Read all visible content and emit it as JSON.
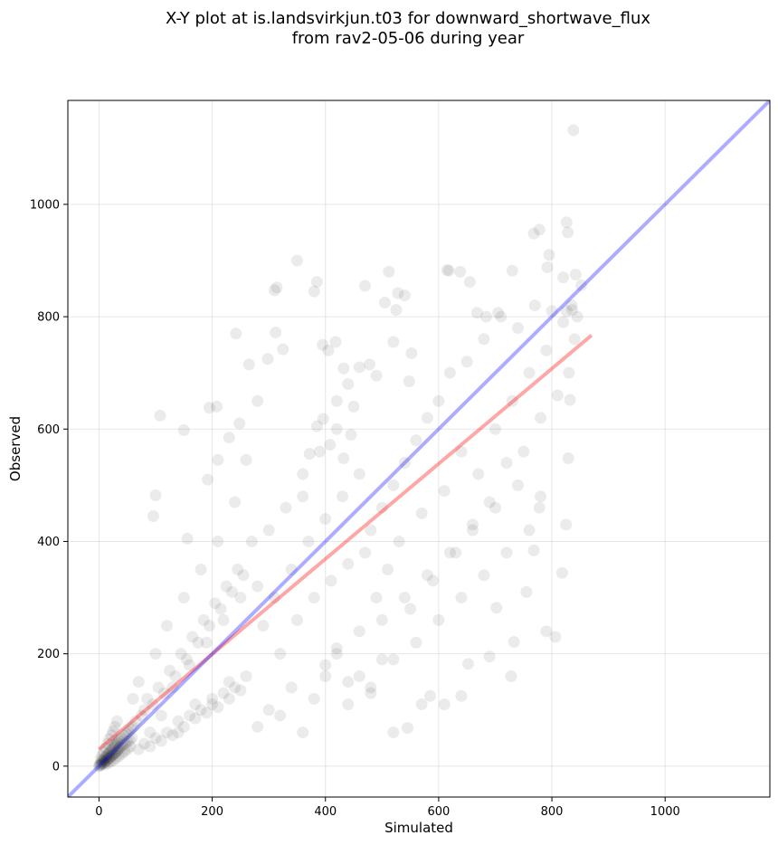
{
  "figure": {
    "title_line1": "X-Y plot at is.landsvirkjun.t03 for downward_shortwave_flux",
    "title_line2": "from rav2-05-06 during year"
  },
  "chart_data": {
    "type": "scatter",
    "xlabel": "Simulated",
    "ylabel": "Observed",
    "xlim": [
      -55,
      1185
    ],
    "ylim": [
      -55,
      1185
    ],
    "xticks": [
      0,
      200,
      400,
      600,
      800,
      1000
    ],
    "yticks": [
      0,
      200,
      400,
      600,
      800,
      1000
    ],
    "grid": true,
    "point_color": "#000000",
    "point_alpha": 0.08,
    "identity_line": {
      "color": "#0000ff",
      "alpha": 0.32,
      "from": [
        -55,
        -55
      ],
      "to": [
        1185,
        1185
      ]
    },
    "regression_line": {
      "color": "#ff0000",
      "alpha": 0.35,
      "from": [
        0,
        30
      ],
      "to": [
        870,
        767
      ]
    },
    "points": [
      [
        0,
        0
      ],
      [
        1,
        2
      ],
      [
        2,
        1
      ],
      [
        3,
        5
      ],
      [
        4,
        3
      ],
      [
        5,
        8
      ],
      [
        6,
        4
      ],
      [
        7,
        10
      ],
      [
        8,
        6
      ],
      [
        9,
        12
      ],
      [
        10,
        7
      ],
      [
        11,
        15
      ],
      [
        12,
        9
      ],
      [
        13,
        18
      ],
      [
        14,
        11
      ],
      [
        15,
        20
      ],
      [
        16,
        13
      ],
      [
        17,
        22
      ],
      [
        18,
        14
      ],
      [
        19,
        25
      ],
      [
        20,
        16
      ],
      [
        21,
        28
      ],
      [
        22,
        18
      ],
      [
        23,
        30
      ],
      [
        24,
        20
      ],
      [
        25,
        33
      ],
      [
        26,
        21
      ],
      [
        27,
        36
      ],
      [
        28,
        23
      ],
      [
        29,
        38
      ],
      [
        30,
        25
      ],
      [
        31,
        40
      ],
      [
        32,
        27
      ],
      [
        33,
        42
      ],
      [
        34,
        30
      ],
      [
        35,
        45
      ],
      [
        36,
        32
      ],
      [
        37,
        48
      ],
      [
        38,
        35
      ],
      [
        40,
        50
      ],
      [
        42,
        38
      ],
      [
        44,
        55
      ],
      [
        46,
        40
      ],
      [
        48,
        58
      ],
      [
        50,
        44
      ],
      [
        52,
        62
      ],
      [
        54,
        46
      ],
      [
        56,
        66
      ],
      [
        58,
        50
      ],
      [
        60,
        70
      ],
      [
        3,
        12
      ],
      [
        5,
        18
      ],
      [
        8,
        25
      ],
      [
        12,
        32
      ],
      [
        15,
        40
      ],
      [
        18,
        48
      ],
      [
        22,
        55
      ],
      [
        25,
        62
      ],
      [
        28,
        70
      ],
      [
        32,
        80
      ],
      [
        10,
        3
      ],
      [
        15,
        5
      ],
      [
        20,
        8
      ],
      [
        25,
        10
      ],
      [
        30,
        14
      ],
      [
        35,
        18
      ],
      [
        40,
        22
      ],
      [
        45,
        26
      ],
      [
        50,
        30
      ],
      [
        55,
        35
      ],
      [
        60,
        120
      ],
      [
        70,
        150
      ],
      [
        80,
        100
      ],
      [
        90,
        60
      ],
      [
        100,
        200
      ],
      [
        110,
        90
      ],
      [
        120,
        250
      ],
      [
        130,
        140
      ],
      [
        140,
        60
      ],
      [
        150,
        300
      ],
      [
        160,
        180
      ],
      [
        170,
        110
      ],
      [
        180,
        350
      ],
      [
        190,
        220
      ],
      [
        200,
        120
      ],
      [
        210,
        400
      ],
      [
        220,
        260
      ],
      [
        230,
        150
      ],
      [
        240,
        470
      ],
      [
        250,
        300
      ],
      [
        65,
        80
      ],
      [
        75,
        90
      ],
      [
        85,
        120
      ],
      [
        95,
        110
      ],
      [
        105,
        140
      ],
      [
        115,
        130
      ],
      [
        125,
        170
      ],
      [
        135,
        160
      ],
      [
        145,
        200
      ],
      [
        155,
        190
      ],
      [
        165,
        230
      ],
      [
        175,
        220
      ],
      [
        185,
        260
      ],
      [
        195,
        250
      ],
      [
        205,
        290
      ],
      [
        215,
        280
      ],
      [
        225,
        320
      ],
      [
        235,
        310
      ],
      [
        245,
        350
      ],
      [
        255,
        340
      ],
      [
        70,
        30
      ],
      [
        80,
        40
      ],
      [
        90,
        35
      ],
      [
        100,
        50
      ],
      [
        110,
        45
      ],
      [
        120,
        60
      ],
      [
        130,
        55
      ],
      [
        140,
        80
      ],
      [
        150,
        70
      ],
      [
        160,
        90
      ],
      [
        170,
        85
      ],
      [
        180,
        100
      ],
      [
        190,
        95
      ],
      [
        200,
        110
      ],
      [
        210,
        105
      ],
      [
        220,
        130
      ],
      [
        230,
        120
      ],
      [
        240,
        140
      ],
      [
        250,
        135
      ],
      [
        260,
        160
      ],
      [
        108,
        624
      ],
      [
        100,
        482
      ],
      [
        96,
        445
      ],
      [
        150,
        598
      ],
      [
        156,
        405
      ],
      [
        192,
        510
      ],
      [
        208,
        640
      ],
      [
        230,
        585
      ],
      [
        242,
        770
      ],
      [
        248,
        610
      ],
      [
        195,
        638
      ],
      [
        210,
        545
      ],
      [
        260,
        545
      ],
      [
        265,
        715
      ],
      [
        280,
        650
      ],
      [
        298,
        725
      ],
      [
        310,
        847
      ],
      [
        314,
        852
      ],
      [
        312,
        772
      ],
      [
        325,
        742
      ],
      [
        270,
        400
      ],
      [
        280,
        320
      ],
      [
        290,
        250
      ],
      [
        300,
        420
      ],
      [
        310,
        300
      ],
      [
        320,
        200
      ],
      [
        330,
        460
      ],
      [
        340,
        350
      ],
      [
        350,
        260
      ],
      [
        360,
        520
      ],
      [
        370,
        400
      ],
      [
        380,
        300
      ],
      [
        390,
        560
      ],
      [
        400,
        440
      ],
      [
        410,
        330
      ],
      [
        420,
        600
      ],
      [
        430,
        480
      ],
      [
        440,
        360
      ],
      [
        450,
        640
      ],
      [
        460,
        520
      ],
      [
        350,
        900
      ],
      [
        380,
        845
      ],
      [
        385,
        862
      ],
      [
        395,
        750
      ],
      [
        405,
        740
      ],
      [
        418,
        755
      ],
      [
        470,
        855
      ],
      [
        505,
        825
      ],
      [
        512,
        880
      ],
      [
        525,
        812
      ],
      [
        528,
        842
      ],
      [
        540,
        838
      ],
      [
        432,
        708
      ],
      [
        440,
        680
      ],
      [
        460,
        710
      ],
      [
        478,
        715
      ],
      [
        490,
        695
      ],
      [
        520,
        755
      ],
      [
        548,
        685
      ],
      [
        552,
        735
      ],
      [
        470,
        380
      ],
      [
        480,
        420
      ],
      [
        490,
        300
      ],
      [
        500,
        460
      ],
      [
        510,
        350
      ],
      [
        520,
        500
      ],
      [
        530,
        400
      ],
      [
        540,
        540
      ],
      [
        550,
        280
      ],
      [
        560,
        580
      ],
      [
        570,
        450
      ],
      [
        580,
        620
      ],
      [
        590,
        330
      ],
      [
        600,
        650
      ],
      [
        610,
        490
      ],
      [
        620,
        700
      ],
      [
        630,
        380
      ],
      [
        640,
        560
      ],
      [
        650,
        720
      ],
      [
        660,
        430
      ],
      [
        670,
        520
      ],
      [
        680,
        760
      ],
      [
        690,
        470
      ],
      [
        700,
        600
      ],
      [
        710,
        800
      ],
      [
        720,
        540
      ],
      [
        730,
        650
      ],
      [
        740,
        780
      ],
      [
        750,
        560
      ],
      [
        760,
        700
      ],
      [
        770,
        820
      ],
      [
        780,
        620
      ],
      [
        790,
        740
      ],
      [
        800,
        810
      ],
      [
        810,
        660
      ],
      [
        820,
        790
      ],
      [
        830,
        700
      ],
      [
        835,
        820
      ],
      [
        840,
        760
      ],
      [
        845,
        800
      ],
      [
        615,
        883
      ],
      [
        618,
        882
      ],
      [
        638,
        880
      ],
      [
        655,
        862
      ],
      [
        668,
        807
      ],
      [
        684,
        800
      ],
      [
        705,
        807
      ],
      [
        730,
        882
      ],
      [
        768,
        948
      ],
      [
        778,
        955
      ],
      [
        792,
        888
      ],
      [
        795,
        910
      ],
      [
        820,
        870
      ],
      [
        826,
        968
      ],
      [
        828,
        950
      ],
      [
        838,
        1132
      ],
      [
        842,
        875
      ],
      [
        852,
        856
      ],
      [
        826,
        810
      ],
      [
        836,
        812
      ],
      [
        520,
        60
      ],
      [
        545,
        68
      ],
      [
        570,
        110
      ],
      [
        585,
        125
      ],
      [
        610,
        110
      ],
      [
        640,
        125
      ],
      [
        652,
        182
      ],
      [
        690,
        195
      ],
      [
        702,
        282
      ],
      [
        728,
        160
      ],
      [
        733,
        221
      ],
      [
        755,
        310
      ],
      [
        768,
        384
      ],
      [
        778,
        460
      ],
      [
        790,
        240
      ],
      [
        806,
        230
      ],
      [
        818,
        344
      ],
      [
        825,
        430
      ],
      [
        829,
        548
      ],
      [
        832,
        652
      ],
      [
        400,
        160
      ],
      [
        420,
        200
      ],
      [
        440,
        150
      ],
      [
        460,
        240
      ],
      [
        480,
        140
      ],
      [
        500,
        260
      ],
      [
        520,
        190
      ],
      [
        540,
        300
      ],
      [
        560,
        220
      ],
      [
        580,
        340
      ],
      [
        600,
        260
      ],
      [
        620,
        380
      ],
      [
        640,
        300
      ],
      [
        660,
        420
      ],
      [
        680,
        340
      ],
      [
        700,
        460
      ],
      [
        720,
        380
      ],
      [
        740,
        500
      ],
      [
        760,
        420
      ],
      [
        780,
        480
      ],
      [
        280,
        70
      ],
      [
        300,
        100
      ],
      [
        320,
        90
      ],
      [
        340,
        140
      ],
      [
        360,
        60
      ],
      [
        380,
        120
      ],
      [
        400,
        180
      ],
      [
        420,
        210
      ],
      [
        440,
        110
      ],
      [
        460,
        160
      ],
      [
        480,
        130
      ],
      [
        500,
        190
      ],
      [
        360,
        480
      ],
      [
        372,
        556
      ],
      [
        385,
        605
      ],
      [
        396,
        618
      ],
      [
        408,
        572
      ],
      [
        420,
        650
      ],
      [
        432,
        548
      ],
      [
        445,
        590
      ]
    ]
  }
}
